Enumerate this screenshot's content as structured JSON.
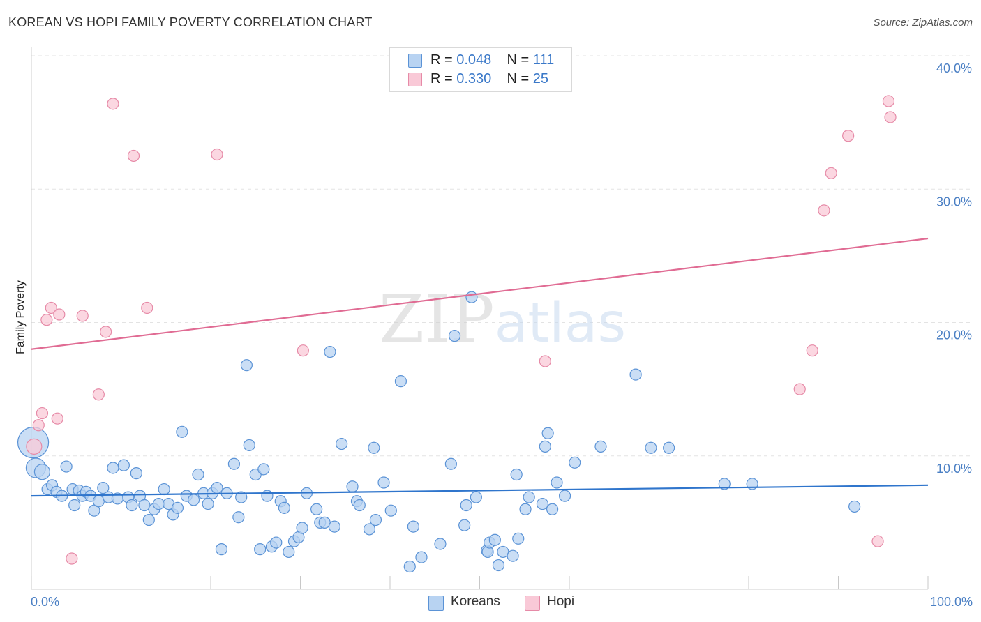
{
  "title": "KOREAN VS HOPI FAMILY POVERTY CORRELATION CHART",
  "source": "Source: ZipAtlas.com",
  "watermark": "ZIPatlas",
  "legend": {
    "rows": [
      {
        "name": "Koreans",
        "r_label": "R =",
        "r_value": "0.048",
        "n_label": "N =",
        "n_value": "111"
      },
      {
        "name": "Hopi",
        "r_label": "R =",
        "r_value": "0.330",
        "n_label": "N =",
        "n_value": "25"
      }
    ]
  },
  "bottom_legend": [
    "Koreans",
    "Hopi"
  ],
  "colors": {
    "koreans_fill": "#b8d3f2",
    "koreans_stroke": "#5b93d6",
    "koreans_line": "#2f75cc",
    "hopi_fill": "#f9c9d7",
    "hopi_stroke": "#e68aa7",
    "hopi_line": "#e06b93",
    "tick": "#4a7fc4",
    "grid": "#e3e3e3"
  },
  "chart_data": {
    "type": "scatter",
    "title": "KOREAN VS HOPI FAMILY POVERTY CORRELATION CHART",
    "xlabel": "",
    "ylabel": "Family Poverty",
    "xlim": [
      0,
      100
    ],
    "ylim": [
      0,
      40
    ],
    "x_tick_labels": [
      "0.0%",
      "100.0%"
    ],
    "y_ticks": [
      10,
      20,
      30,
      40
    ],
    "y_tick_labels": [
      "10.0%",
      "20.0%",
      "30.0%",
      "40.0%"
    ],
    "series": [
      {
        "name": "Koreans",
        "R": 0.048,
        "N": 111,
        "trend": {
          "x": [
            0,
            100
          ],
          "y": [
            7.0,
            7.8
          ]
        },
        "points": [
          [
            0.2,
            11.0
          ],
          [
            0.5,
            9.1
          ],
          [
            1.2,
            8.8
          ],
          [
            1.8,
            7.5
          ],
          [
            2.3,
            7.8
          ],
          [
            2.8,
            7.3
          ],
          [
            3.4,
            7.0
          ],
          [
            3.9,
            9.2
          ],
          [
            4.6,
            7.5
          ],
          [
            4.8,
            6.3
          ],
          [
            5.3,
            7.4
          ],
          [
            5.7,
            7.0
          ],
          [
            6.1,
            7.3
          ],
          [
            6.6,
            7.0
          ],
          [
            7.0,
            5.9
          ],
          [
            7.5,
            6.6
          ],
          [
            8.0,
            7.6
          ],
          [
            8.6,
            6.9
          ],
          [
            9.1,
            9.1
          ],
          [
            9.6,
            6.8
          ],
          [
            10.3,
            9.3
          ],
          [
            10.8,
            6.9
          ],
          [
            11.2,
            6.3
          ],
          [
            11.7,
            8.7
          ],
          [
            12.1,
            7.0
          ],
          [
            12.6,
            6.3
          ],
          [
            13.1,
            5.2
          ],
          [
            13.7,
            6.0
          ],
          [
            14.2,
            6.4
          ],
          [
            14.8,
            7.5
          ],
          [
            15.3,
            6.4
          ],
          [
            15.8,
            5.6
          ],
          [
            16.3,
            6.1
          ],
          [
            16.8,
            11.8
          ],
          [
            17.3,
            7.0
          ],
          [
            18.1,
            6.7
          ],
          [
            18.6,
            8.6
          ],
          [
            19.2,
            7.2
          ],
          [
            19.7,
            6.4
          ],
          [
            20.2,
            7.2
          ],
          [
            20.7,
            7.6
          ],
          [
            21.2,
            3.0
          ],
          [
            21.8,
            7.2
          ],
          [
            22.6,
            9.4
          ],
          [
            23.1,
            5.4
          ],
          [
            23.4,
            6.9
          ],
          [
            24.0,
            16.8
          ],
          [
            24.3,
            10.8
          ],
          [
            25.0,
            8.6
          ],
          [
            25.5,
            3.0
          ],
          [
            25.9,
            9.0
          ],
          [
            26.3,
            7.0
          ],
          [
            26.8,
            3.2
          ],
          [
            27.3,
            3.5
          ],
          [
            27.8,
            6.6
          ],
          [
            28.2,
            6.1
          ],
          [
            28.7,
            2.8
          ],
          [
            29.3,
            3.6
          ],
          [
            29.8,
            3.9
          ],
          [
            30.2,
            4.6
          ],
          [
            30.7,
            7.2
          ],
          [
            31.8,
            6.0
          ],
          [
            32.2,
            5.0
          ],
          [
            32.7,
            5.0
          ],
          [
            33.3,
            17.8
          ],
          [
            33.8,
            4.7
          ],
          [
            34.6,
            10.9
          ],
          [
            35.8,
            7.7
          ],
          [
            36.3,
            6.6
          ],
          [
            36.6,
            6.3
          ],
          [
            37.7,
            4.5
          ],
          [
            38.2,
            10.6
          ],
          [
            38.4,
            5.2
          ],
          [
            39.3,
            8.0
          ],
          [
            40.1,
            5.9
          ],
          [
            41.2,
            15.6
          ],
          [
            42.2,
            1.7
          ],
          [
            42.6,
            4.7
          ],
          [
            43.5,
            2.4
          ],
          [
            45.6,
            3.4
          ],
          [
            46.8,
            9.4
          ],
          [
            47.2,
            19.0
          ],
          [
            48.3,
            4.8
          ],
          [
            48.5,
            6.3
          ],
          [
            49.1,
            21.9
          ],
          [
            49.6,
            6.9
          ],
          [
            50.8,
            2.9
          ],
          [
            50.9,
            2.8
          ],
          [
            51.1,
            3.5
          ],
          [
            51.7,
            3.7
          ],
          [
            52.1,
            1.8
          ],
          [
            52.6,
            2.8
          ],
          [
            53.7,
            2.5
          ],
          [
            54.1,
            8.6
          ],
          [
            54.3,
            3.8
          ],
          [
            55.1,
            6.0
          ],
          [
            55.5,
            6.9
          ],
          [
            57.0,
            6.4
          ],
          [
            57.3,
            10.7
          ],
          [
            57.6,
            11.7
          ],
          [
            58.1,
            6.0
          ],
          [
            58.6,
            8.0
          ],
          [
            59.5,
            7.0
          ],
          [
            60.6,
            9.5
          ],
          [
            63.5,
            10.7
          ],
          [
            67.4,
            16.1
          ],
          [
            69.1,
            10.6
          ],
          [
            71.1,
            10.6
          ],
          [
            77.3,
            7.9
          ],
          [
            80.4,
            7.9
          ],
          [
            91.8,
            6.2
          ]
        ]
      },
      {
        "name": "Hopi",
        "R": 0.33,
        "N": 25,
        "trend": {
          "x": [
            0,
            100
          ],
          "y": [
            18.0,
            26.3
          ]
        },
        "points": [
          [
            0.3,
            10.7
          ],
          [
            0.8,
            12.3
          ],
          [
            1.2,
            13.2
          ],
          [
            1.7,
            20.2
          ],
          [
            2.2,
            21.1
          ],
          [
            2.9,
            12.8
          ],
          [
            3.1,
            20.6
          ],
          [
            4.5,
            2.3
          ],
          [
            5.7,
            20.5
          ],
          [
            7.5,
            14.6
          ],
          [
            8.3,
            19.3
          ],
          [
            9.1,
            36.4
          ],
          [
            11.4,
            32.5
          ],
          [
            12.9,
            21.1
          ],
          [
            20.7,
            32.6
          ],
          [
            30.3,
            17.9
          ],
          [
            57.3,
            17.1
          ],
          [
            85.7,
            15.0
          ],
          [
            87.1,
            17.9
          ],
          [
            88.4,
            28.4
          ],
          [
            89.2,
            31.2
          ],
          [
            91.1,
            34.0
          ],
          [
            94.4,
            3.6
          ],
          [
            95.6,
            36.6
          ],
          [
            95.8,
            35.4
          ]
        ]
      }
    ]
  }
}
